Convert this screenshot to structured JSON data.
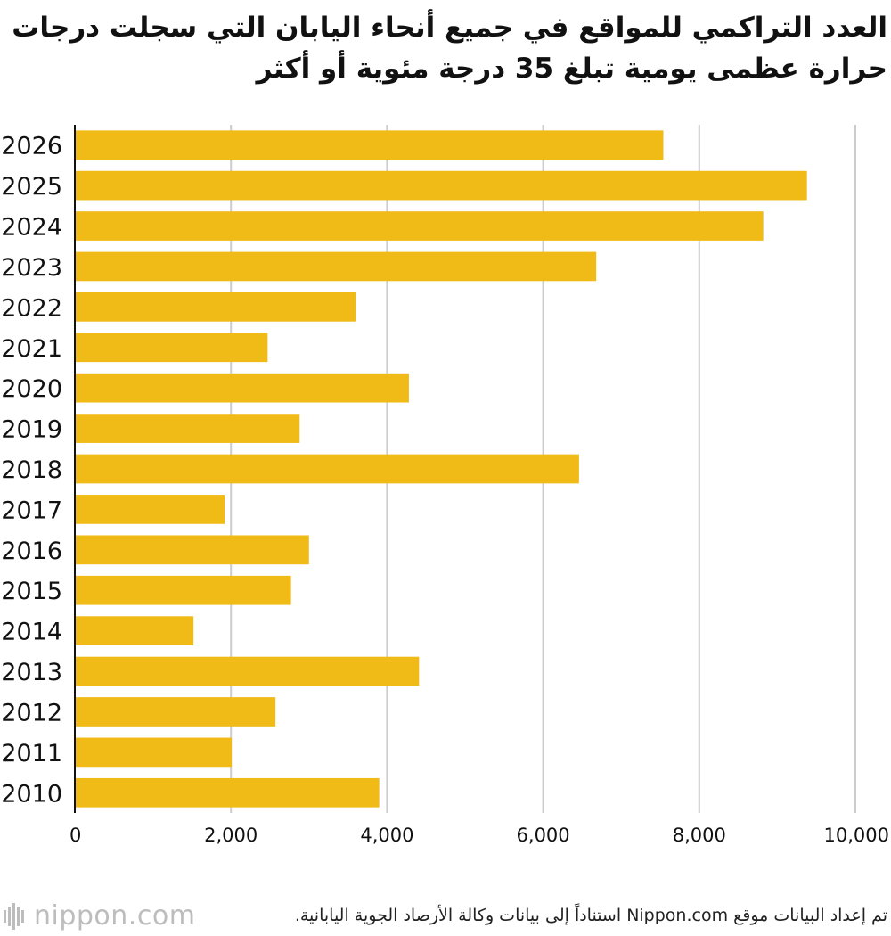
{
  "chart_data": {
    "type": "bar",
    "orientation": "horizontal",
    "title": "العدد التراكمي للمواقع في جميع أنحاء اليابان التي سجلت درجات حرارة عظمى يومية تبلغ 35 درجة مئوية أو أكثر",
    "categories": [
      "2026",
      "2025",
      "2024",
      "2023",
      "2022",
      "2021",
      "2020",
      "2019",
      "2018",
      "2017",
      "2016",
      "2015",
      "2014",
      "2013",
      "2012",
      "2011",
      "2010"
    ],
    "values": [
      7540,
      9380,
      8820,
      6680,
      3600,
      2470,
      4280,
      2880,
      6460,
      1920,
      3000,
      2770,
      1520,
      4410,
      2570,
      2010,
      3900
    ],
    "xlim": [
      0,
      10000
    ],
    "xticks": [
      0,
      2000,
      4000,
      6000,
      8000,
      10000
    ],
    "xtick_labels": [
      "0",
      "2,000",
      "4,000",
      "6,000",
      "8,000",
      "10,000"
    ],
    "grid": true,
    "colors": {
      "bar": "#F0BA17",
      "grid": "#cccccc",
      "axis": "#111111"
    }
  },
  "footer": {
    "source": "تم إعداد البيانات موقع Nippon.com استناداً إلى بيانات وكالة الأرصاد الجوية اليابانية.",
    "logo_text": "nippon.com",
    "logo_icon": "nippon-logo-icon"
  }
}
